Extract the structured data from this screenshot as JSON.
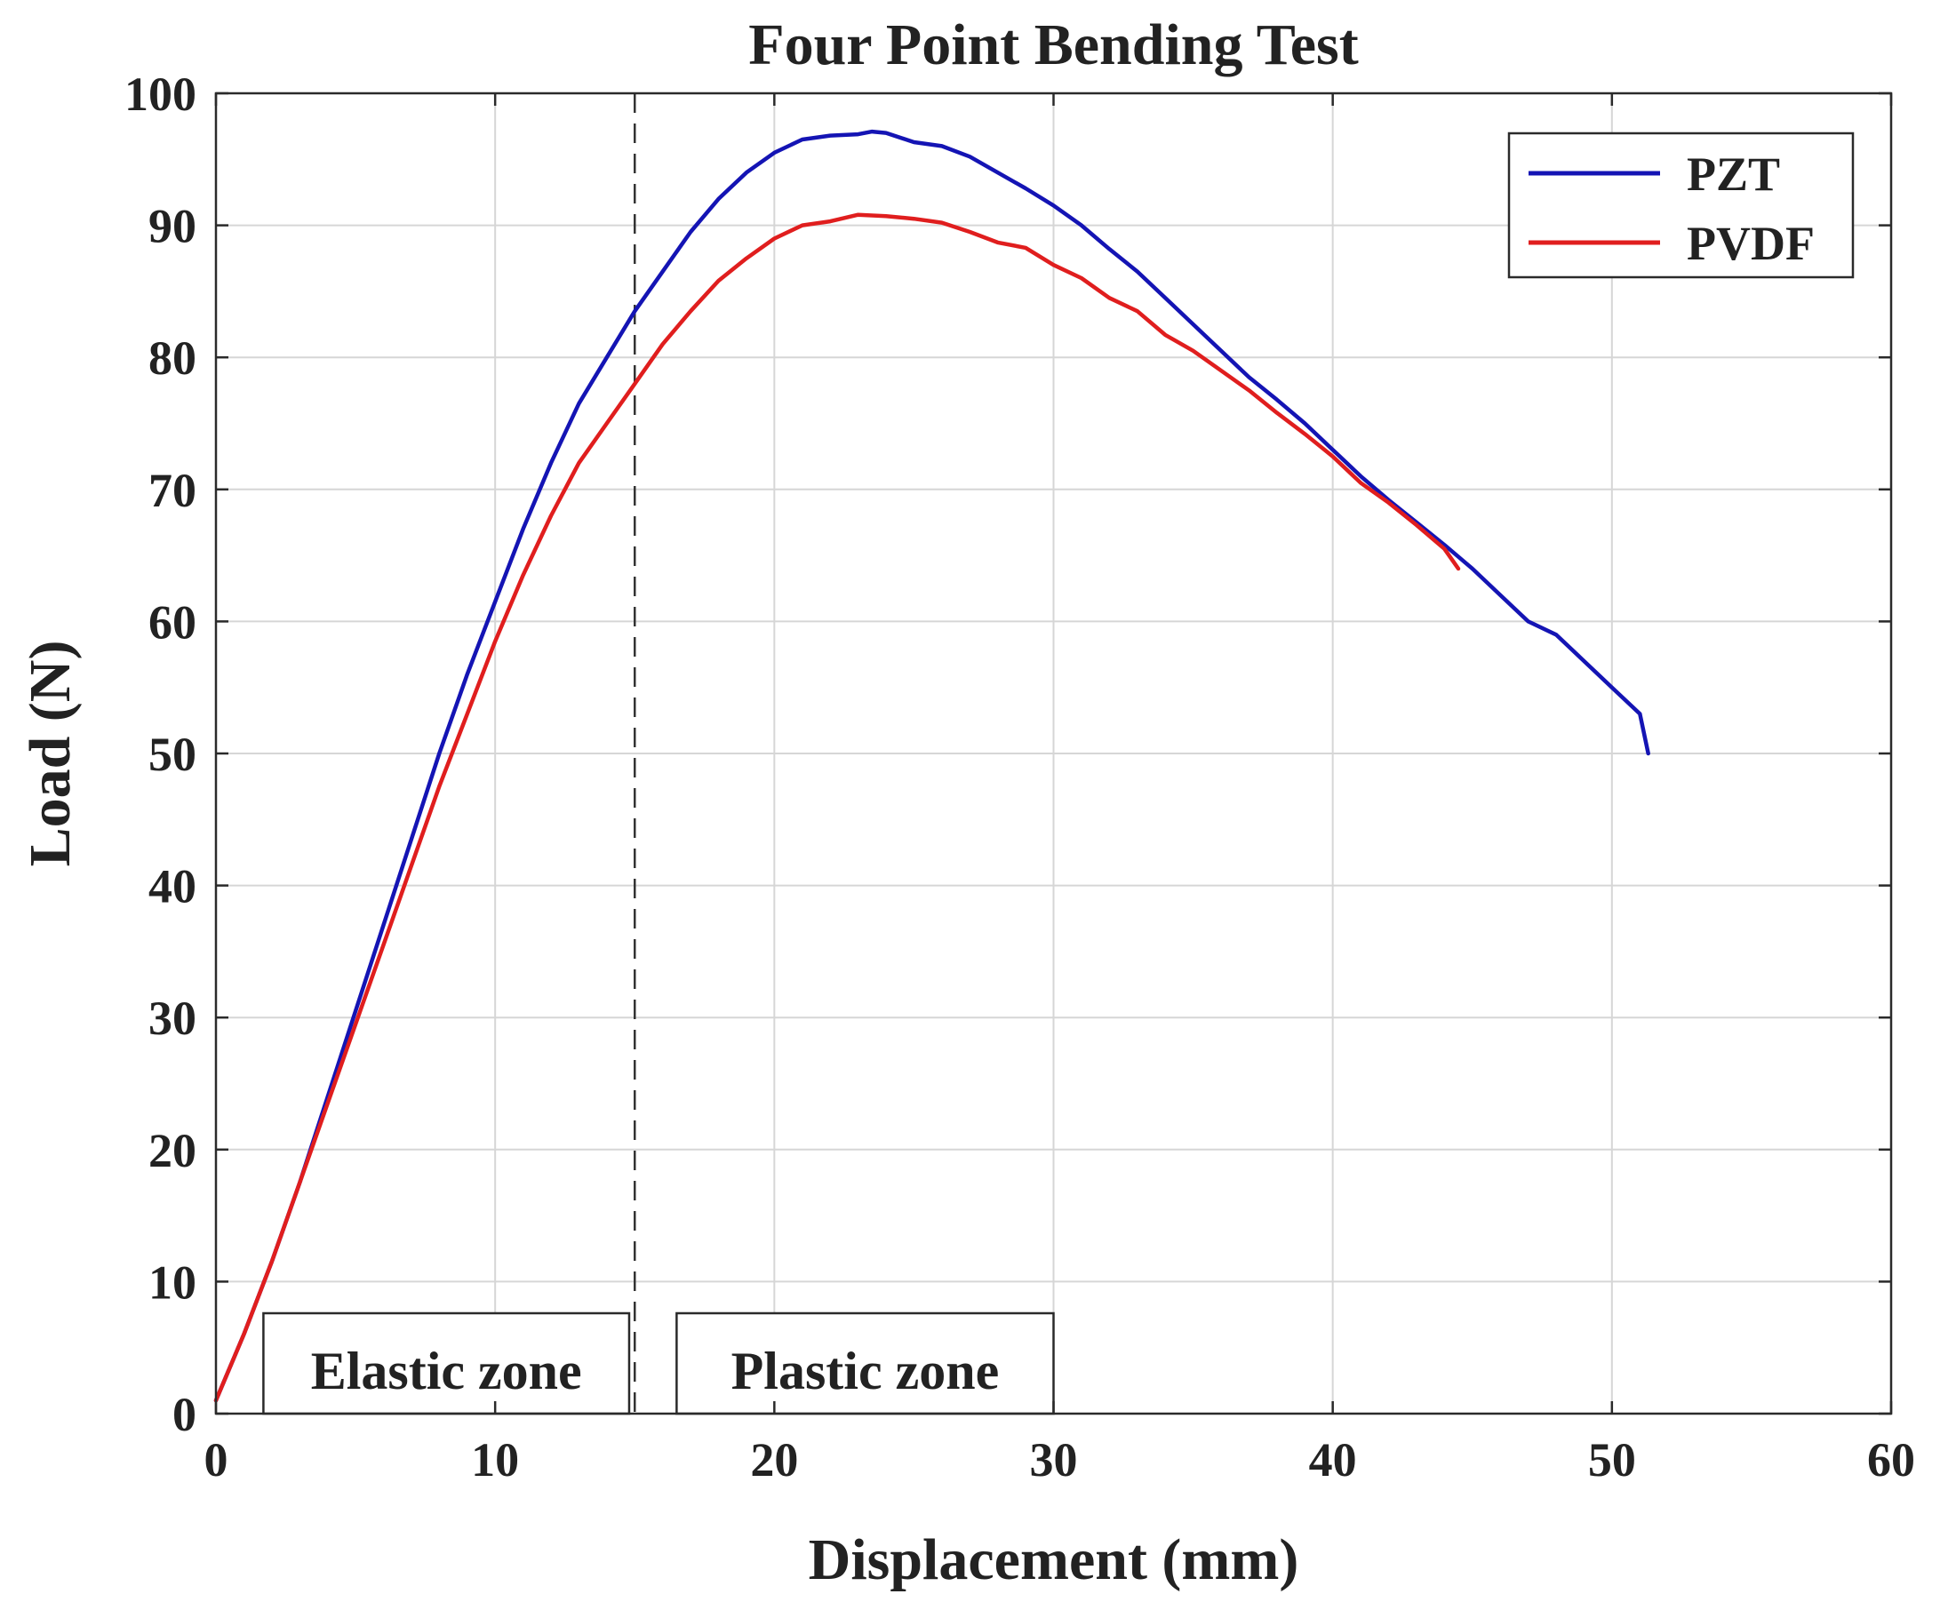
{
  "chart_data": {
    "type": "line",
    "title": "Four Point Bending Test",
    "xlabel": "Displacement (mm)",
    "ylabel": "Load (N)",
    "xlim": [
      0,
      60
    ],
    "ylim": [
      0,
      100
    ],
    "xticks": [
      0,
      10,
      20,
      30,
      40,
      50,
      60
    ],
    "yticks": [
      0,
      10,
      20,
      30,
      40,
      50,
      60,
      70,
      80,
      90,
      100
    ],
    "grid": true,
    "legend_position": "top-right",
    "series": [
      {
        "name": "PZT",
        "color": "#1414b4",
        "x": [
          0,
          1,
          2,
          3,
          4,
          5,
          6,
          7,
          8,
          9,
          10,
          11,
          12,
          13,
          14,
          15,
          16,
          17,
          18,
          19,
          20,
          21,
          22,
          23,
          23.5,
          24,
          25,
          26,
          27,
          28,
          29,
          30,
          31,
          32,
          33,
          34,
          35,
          36,
          37,
          38,
          39,
          40,
          41,
          42,
          43,
          44,
          45,
          46,
          47,
          48,
          49,
          50,
          51,
          51.3
        ],
        "y": [
          1,
          6,
          11.5,
          17.5,
          24,
          30.5,
          37,
          43.5,
          50,
          56,
          61.5,
          67,
          72,
          76.5,
          80,
          83.5,
          86.5,
          89.5,
          92,
          94,
          95.5,
          96.5,
          96.8,
          96.9,
          97.1,
          97,
          96.3,
          96,
          95.2,
          94,
          92.8,
          91.5,
          90,
          88.2,
          86.5,
          84.5,
          82.5,
          80.5,
          78.5,
          76.8,
          75,
          73,
          71,
          69.2,
          67.5,
          65.8,
          64,
          62,
          60,
          59,
          57,
          55,
          53,
          50
        ]
      },
      {
        "name": "PVDF",
        "color": "#e01e1e",
        "x": [
          0,
          1,
          2,
          3,
          4,
          5,
          6,
          7,
          8,
          9,
          10,
          11,
          12,
          13,
          14,
          15,
          16,
          17,
          18,
          19,
          20,
          21,
          22,
          23,
          24,
          25,
          26,
          27,
          28,
          29,
          30,
          31,
          32,
          33,
          34,
          35,
          36,
          37,
          38,
          39,
          40,
          41,
          42,
          43,
          44,
          44.5
        ],
        "y": [
          1,
          6,
          11.5,
          17.5,
          23.5,
          29.5,
          35.5,
          41.5,
          47.5,
          53,
          58.5,
          63.5,
          68,
          72,
          75,
          78,
          81,
          83.5,
          85.8,
          87.5,
          89,
          90,
          90.3,
          90.8,
          90.7,
          90.5,
          90.2,
          89.5,
          88.7,
          88.3,
          87,
          86,
          84.5,
          83.5,
          81.7,
          80.5,
          79,
          77.5,
          75.8,
          74.2,
          72.5,
          70.5,
          69,
          67.3,
          65.5,
          64
        ]
      }
    ],
    "vertical_lines": [
      {
        "x": 15,
        "style": "dashed"
      }
    ],
    "annotations": [
      {
        "text": "Elastic zone",
        "x_range": [
          1.7,
          14.8
        ]
      },
      {
        "text": "Plastic zone",
        "x_range": [
          16.5,
          30
        ]
      }
    ]
  }
}
